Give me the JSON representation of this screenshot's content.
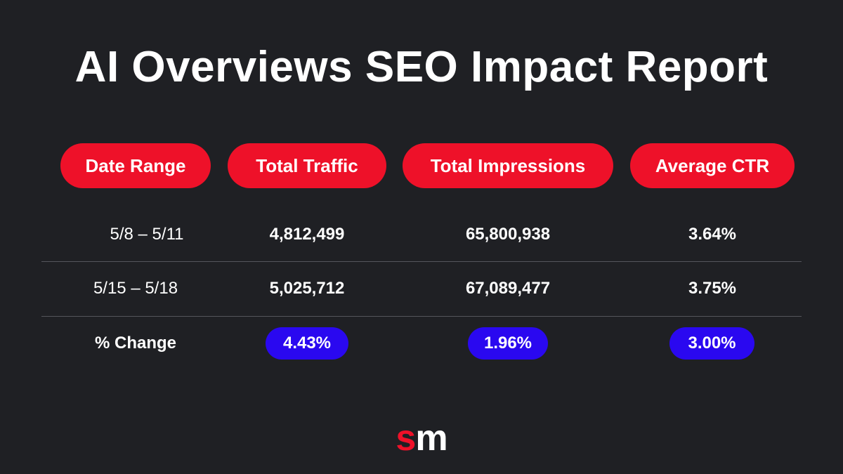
{
  "title": "AI Overviews SEO Impact Report",
  "colors": {
    "background": "#1f2024",
    "header_pill": "#ee1129",
    "change_badge": "#2a08f0",
    "divider": "#55565c",
    "logo_s": "#ee1129",
    "logo_m": "#ffffff"
  },
  "chart_data": {
    "type": "table",
    "title": "AI Overviews SEO Impact Report",
    "columns": [
      "Date Range",
      "Total Traffic",
      "Total Impressions",
      "Average CTR"
    ],
    "rows": [
      {
        "label": "5/8 – 5/11",
        "values": [
          "4,812,499",
          "65,800,938",
          "3.64%"
        ]
      },
      {
        "label": "5/15 – 5/18",
        "values": [
          "5,025,712",
          "67,089,477",
          "3.75%"
        ]
      },
      {
        "label": "% Change",
        "values": [
          "4.43%",
          "1.96%",
          "3.00%"
        ]
      }
    ]
  },
  "logo": {
    "s": "s",
    "m": "m"
  }
}
